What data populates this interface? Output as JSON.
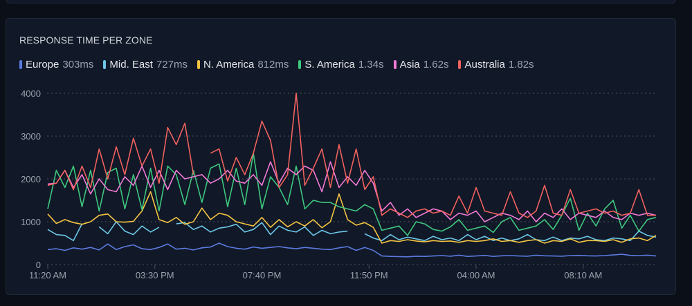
{
  "chart_data": {
    "type": "line",
    "title": "RESPONSE TIME PER ZONE",
    "xlabel": "",
    "ylabel": "",
    "ylim": [
      0,
      4000
    ],
    "y_ticks": [
      0,
      1000,
      2000,
      3000,
      4000
    ],
    "y_tick_labels": [
      "0",
      "1000",
      "2000",
      "3000",
      "4000"
    ],
    "x_interval_minutes": 20,
    "x_ticks_minutes": [
      0,
      250,
      500,
      750,
      1000,
      1250
    ],
    "x_tick_labels": [
      "11:20 AM",
      "03:30 PM",
      "07:40 PM",
      "11:50 PM",
      "04:00 AM",
      "08:10 AM"
    ],
    "grid": true,
    "legend_placement": "top-left",
    "series": [
      {
        "name": "Europe",
        "summary": "303ms",
        "color": "#5b7be0",
        "values": [
          350,
          370,
          330,
          390,
          360,
          400,
          340,
          480,
          350,
          420,
          460,
          370,
          350,
          400,
          480,
          360,
          380,
          340,
          390,
          410,
          500,
          420,
          380,
          360,
          410,
          380,
          400,
          420,
          390,
          370,
          400,
          380,
          360,
          350,
          390,
          420,
          330,
          400,
          330,
          200,
          190,
          185,
          180,
          195,
          190,
          200,
          210,
          195,
          220,
          190,
          200,
          215,
          190,
          205,
          210,
          200,
          195,
          220,
          205,
          200,
          195,
          210,
          215,
          205,
          200,
          210,
          225,
          240,
          215,
          210,
          220,
          200
        ]
      },
      {
        "name": "Mid. East",
        "summary": "727ms",
        "color": "#6cc7e8",
        "values": [
          820,
          700,
          680,
          560,
          950,
          null,
          880,
          720,
          1000,
          780,
          700,
          900,
          760,
          870,
          null,
          950,
          980,
          820,
          900,
          760,
          850,
          880,
          940,
          760,
          820,
          980,
          700,
          900,
          800,
          760,
          880,
          680,
          800,
          720,
          760,
          780,
          null,
          720,
          620,
          560,
          700,
          580,
          640,
          600,
          560,
          660,
          580,
          620,
          560,
          700,
          580,
          660,
          560,
          620,
          560,
          600,
          700,
          580,
          560,
          640,
          560,
          620,
          600,
          660,
          580,
          560,
          620,
          600,
          560,
          780,
          680,
          640
        ]
      },
      {
        "name": "N. America",
        "summary": "812ms",
        "color": "#f5c542",
        "values": [
          1180,
          960,
          1050,
          980,
          940,
          1000,
          1150,
          1180,
          1000,
          990,
          1010,
          1250,
          1700,
          1050,
          980,
          1100,
          940,
          1000,
          1320,
          1050,
          1200,
          1150,
          1000,
          950,
          900,
          1100,
          870,
          1050,
          880,
          1000,
          900,
          1050,
          860,
          1000,
          1650,
          1050,
          920,
          980,
          870,
          500,
          560,
          540,
          580,
          550,
          530,
          560,
          540,
          550,
          520,
          560,
          540,
          560,
          600,
          540,
          560,
          520,
          560,
          580,
          500,
          560,
          540,
          600,
          520,
          560,
          560,
          540,
          580,
          520,
          600,
          620,
          560,
          680
        ]
      },
      {
        "name": "S. America",
        "summary": "1.34s",
        "color": "#3ec77f",
        "values": [
          1300,
          2200,
          1800,
          2300,
          1350,
          2200,
          1250,
          2150,
          2250,
          1300,
          2100,
          1280,
          2250,
          1250,
          2300,
          2100,
          1400,
          2200,
          1450,
          2250,
          2350,
          1350,
          2250,
          1400,
          2600,
          1300,
          2050,
          1800,
          1400,
          2300,
          1300,
          1500,
          1450,
          1450,
          1350,
          1300,
          1250,
          1400,
          1300,
          800,
          850,
          900,
          680,
          1000,
          950,
          820,
          780,
          880,
          1050,
          800,
          850,
          900,
          750,
          1000,
          1100,
          800,
          850,
          900,
          1050,
          820,
          1150,
          1550,
          800,
          1200,
          900,
          1300,
          1500,
          850,
          1150,
          780,
          1050,
          1100
        ]
      },
      {
        "name": "Asia",
        "summary": "1.62s",
        "color": "#f07ad6",
        "values": [
          1880,
          1900,
          2200,
          1800,
          2100,
          1650,
          2000,
          1750,
          1700,
          2050,
          1850,
          2300,
          1800,
          2200,
          1750,
          2200,
          2000,
          2050,
          2100,
          1900,
          2000,
          2200,
          1950,
          1900,
          2100,
          1850,
          2400,
          1900,
          2250,
          2100,
          2300,
          2200,
          1700,
          2400,
          1800,
          2050,
          1850,
          2200,
          1900,
          1250,
          1450,
          1150,
          1300,
          1100,
          1200,
          1300,
          1250,
          1050,
          1200,
          1150,
          1250,
          1000,
          1100,
          1200,
          1150,
          1050,
          1250,
          1000,
          1200,
          1100,
          1300,
          1050,
          1200,
          1150,
          1100,
          1250,
          1100,
          1050,
          1200,
          1150,
          1200,
          1150
        ]
      },
      {
        "name": "Australia",
        "summary": "1.82s",
        "color": "#f0625f",
        "values": [
          1850,
          1900,
          2200,
          1750,
          2300,
          1800,
          2700,
          2000,
          2750,
          2100,
          2950,
          2300,
          2700,
          1900,
          3200,
          2800,
          3300,
          2100,
          null,
          2600,
          2700,
          1950,
          2500,
          2100,
          2600,
          3350,
          2900,
          1800,
          2100,
          4000,
          1850,
          2250,
          2700,
          1800,
          2800,
          1900,
          2700,
          1750,
          2050,
          1150,
          1300,
          1200,
          1100,
          1250,
          1300,
          1200,
          1250,
          1150,
          1600,
          1200,
          1800,
          1250,
          1200,
          1150,
          1700,
          1200,
          1100,
          1250,
          1850,
          1200,
          1150,
          1750,
          1200,
          1250,
          1300,
          1200,
          1250,
          1150,
          1200,
          1750,
          1150,
          1150
        ]
      }
    ]
  }
}
